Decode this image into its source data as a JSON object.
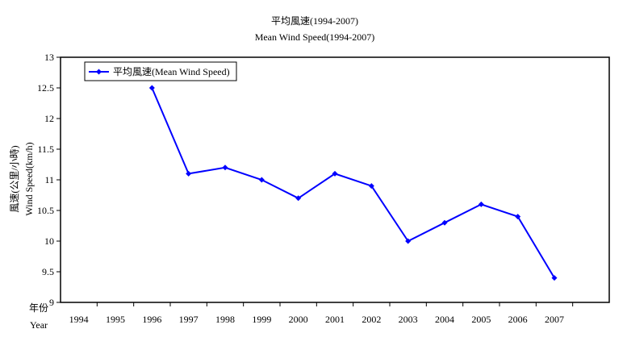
{
  "chart_data": {
    "type": "line",
    "title": "平均風速(1994-2007)",
    "subtitle": "Mean Wind Speed(1994-2007)",
    "ylabel_zh": "風速(公里/小時)",
    "ylabel_en": "Wind Speed(km/h)",
    "xlabel_zh": "年份",
    "xlabel_en": "Year",
    "categories": [
      "1994",
      "1995",
      "1996",
      "1997",
      "1998",
      "1999",
      "2000",
      "2001",
      "2002",
      "2003",
      "2004",
      "2005",
      "2006",
      "2007"
    ],
    "category_slots": 15,
    "ylim": [
      9,
      13
    ],
    "yticks": [
      9,
      9.5,
      10,
      10.5,
      11,
      11.5,
      12,
      12.5,
      13
    ],
    "ytick_labels": [
      "9",
      "9.5",
      "10",
      "10.5",
      "11",
      "11.5",
      "12",
      "12.5",
      "13"
    ],
    "grid": false,
    "legend_position": "top-left",
    "series": [
      {
        "name": "平均風速(Mean Wind Speed)",
        "color": "#0000FF",
        "values": [
          null,
          null,
          12.5,
          11.1,
          11.2,
          11.0,
          10.7,
          11.1,
          10.9,
          10.0,
          10.3,
          10.6,
          10.4,
          9.4
        ]
      }
    ]
  }
}
